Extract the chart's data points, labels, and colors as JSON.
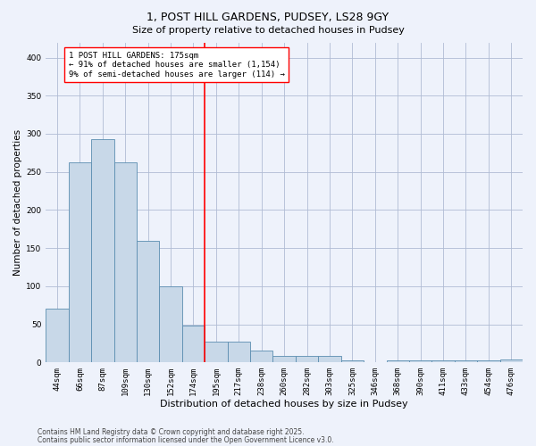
{
  "title1": "1, POST HILL GARDENS, PUDSEY, LS28 9GY",
  "title2": "Size of property relative to detached houses in Pudsey",
  "xlabel": "Distribution of detached houses by size in Pudsey",
  "ylabel": "Number of detached properties",
  "footnote1": "Contains HM Land Registry data © Crown copyright and database right 2025.",
  "footnote2": "Contains public sector information licensed under the Open Government Licence v3.0.",
  "categories": [
    "44sqm",
    "66sqm",
    "87sqm",
    "109sqm",
    "130sqm",
    "152sqm",
    "174sqm",
    "195sqm",
    "217sqm",
    "238sqm",
    "260sqm",
    "282sqm",
    "303sqm",
    "325sqm",
    "346sqm",
    "368sqm",
    "390sqm",
    "411sqm",
    "433sqm",
    "454sqm",
    "476sqm"
  ],
  "values": [
    70,
    263,
    293,
    263,
    160,
    100,
    48,
    27,
    27,
    16,
    9,
    8,
    8,
    3,
    0,
    3,
    3,
    3,
    3,
    3,
    4
  ],
  "bar_color": "#c8d8e8",
  "bar_edge_color": "#5b8db0",
  "annotation_line_color": "red",
  "annotation_line_index": 6,
  "annotation_box_text": "1 POST HILL GARDENS: 175sqm\n← 91% of detached houses are smaller (1,154)\n9% of semi-detached houses are larger (114) →",
  "bg_color": "#eef2fb",
  "plot_bg_color": "#eef2fb",
  "ylim": [
    0,
    420
  ],
  "yticks": [
    0,
    50,
    100,
    150,
    200,
    250,
    300,
    350,
    400
  ],
  "grid_color": "#b0bcd4",
  "title1_fontsize": 9,
  "title2_fontsize": 8,
  "xlabel_fontsize": 8,
  "ylabel_fontsize": 7.5,
  "tick_fontsize": 6.5,
  "annot_fontsize": 6.5,
  "footnote_fontsize": 5.5
}
